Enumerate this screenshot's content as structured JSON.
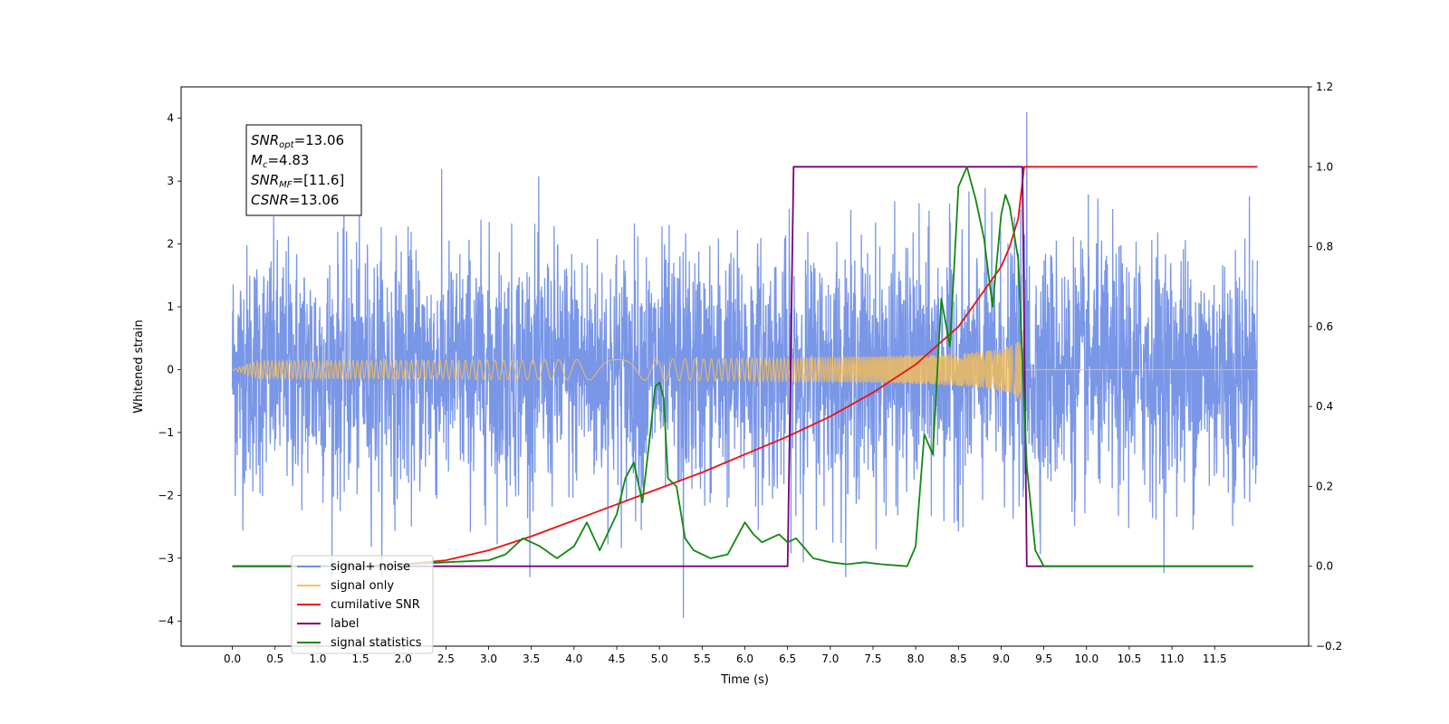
{
  "chart_data": {
    "type": "line",
    "title": "",
    "xlabel": "Time (s)",
    "ylabel": "Whitened strain",
    "y2label": "",
    "xlim": [
      -0.6,
      12.6
    ],
    "ylim": [
      -4.4,
      4.5
    ],
    "y2lim": [
      -0.2,
      1.2
    ],
    "xticks": [
      "0.0",
      "0.5",
      "1.0",
      "1.5",
      "2.0",
      "2.5",
      "3.0",
      "3.5",
      "4.0",
      "4.5",
      "5.0",
      "5.5",
      "6.0",
      "6.5",
      "7.0",
      "7.5",
      "8.0",
      "8.5",
      "9.0",
      "9.5",
      "10.0",
      "10.5",
      "11.0",
      "11.5"
    ],
    "yticks": [
      "−4",
      "−3",
      "−2",
      "−1",
      "0",
      "1",
      "2",
      "3",
      "4"
    ],
    "y2ticks": [
      "−0.2",
      "0.0",
      "0.2",
      "0.4",
      "0.6",
      "0.8",
      "1.0",
      "1.2"
    ],
    "grid": false,
    "legend_position": "bottom-left",
    "annotation": {
      "lines": [
        {
          "main": "SNR",
          "sub": "opt",
          "value": "=13.06"
        },
        {
          "main": "M",
          "sub": "c",
          "value": "=4.83"
        },
        {
          "main": "SNR",
          "sub": "MF",
          "value": "=[11.6]"
        },
        {
          "main": "CSNR",
          "sub": "",
          "value": "=13.06"
        }
      ]
    },
    "series": [
      {
        "name": "signal+ noise",
        "color": "#7290e6",
        "axis": "left",
        "kind": "noise",
        "x_range": [
          0,
          12
        ],
        "amplitude": 1.25,
        "peak_max": 4.1,
        "peak_min": -3.95
      },
      {
        "name": "signal only",
        "color": "#ffc04d",
        "axis": "left",
        "kind": "chirp",
        "x_range": [
          0,
          12
        ],
        "merger_time": 9.25,
        "peak_amplitude": 0.65
      },
      {
        "name": "cumilative SNR",
        "color": "#ee1111",
        "axis": "right",
        "kind": "line",
        "x": [
          0.0,
          0.5,
          1.0,
          1.5,
          2.0,
          2.5,
          3.0,
          3.5,
          4.0,
          4.5,
          5.0,
          5.5,
          6.0,
          6.5,
          7.0,
          7.5,
          8.0,
          8.5,
          9.0,
          9.1,
          9.2,
          9.27,
          9.3,
          12.0
        ],
        "y": [
          0.0,
          0.0,
          0.0,
          0.0,
          0.005,
          0.015,
          0.04,
          0.075,
          0.115,
          0.155,
          0.195,
          0.235,
          0.28,
          0.325,
          0.375,
          0.435,
          0.505,
          0.6,
          0.75,
          0.8,
          0.87,
          1.0,
          1.0,
          1.0
        ]
      },
      {
        "name": "label",
        "color": "#7b007b",
        "axis": "right",
        "kind": "line",
        "x": [
          0.0,
          6.5,
          6.57,
          9.25,
          9.3,
          11.95
        ],
        "y": [
          0.0,
          0.0,
          1.0,
          1.0,
          0.0,
          0.0
        ]
      },
      {
        "name": "signal statistics",
        "color": "#118811",
        "axis": "right",
        "kind": "line",
        "x": [
          0.0,
          1.5,
          2.5,
          3.0,
          3.2,
          3.4,
          3.6,
          3.8,
          4.0,
          4.15,
          4.3,
          4.5,
          4.6,
          4.7,
          4.8,
          4.88,
          4.95,
          5.0,
          5.05,
          5.1,
          5.2,
          5.3,
          5.4,
          5.6,
          5.8,
          6.0,
          6.1,
          6.2,
          6.4,
          6.5,
          6.6,
          6.8,
          7.0,
          7.2,
          7.4,
          7.6,
          7.9,
          8.0,
          8.1,
          8.2,
          8.3,
          8.4,
          8.5,
          8.6,
          8.7,
          8.8,
          8.9,
          9.0,
          9.05,
          9.1,
          9.2,
          9.3,
          9.4,
          9.5,
          11.95
        ],
        "y": [
          0.0,
          0.0,
          0.01,
          0.015,
          0.03,
          0.07,
          0.05,
          0.02,
          0.05,
          0.11,
          0.04,
          0.13,
          0.22,
          0.26,
          0.16,
          0.31,
          0.45,
          0.46,
          0.42,
          0.22,
          0.2,
          0.07,
          0.04,
          0.02,
          0.03,
          0.11,
          0.08,
          0.06,
          0.08,
          0.06,
          0.07,
          0.02,
          0.01,
          0.005,
          0.01,
          0.005,
          0.0,
          0.05,
          0.33,
          0.28,
          0.67,
          0.55,
          0.95,
          1.0,
          0.92,
          0.82,
          0.65,
          0.88,
          0.93,
          0.9,
          0.77,
          0.25,
          0.04,
          0.0,
          0.0
        ]
      }
    ]
  }
}
